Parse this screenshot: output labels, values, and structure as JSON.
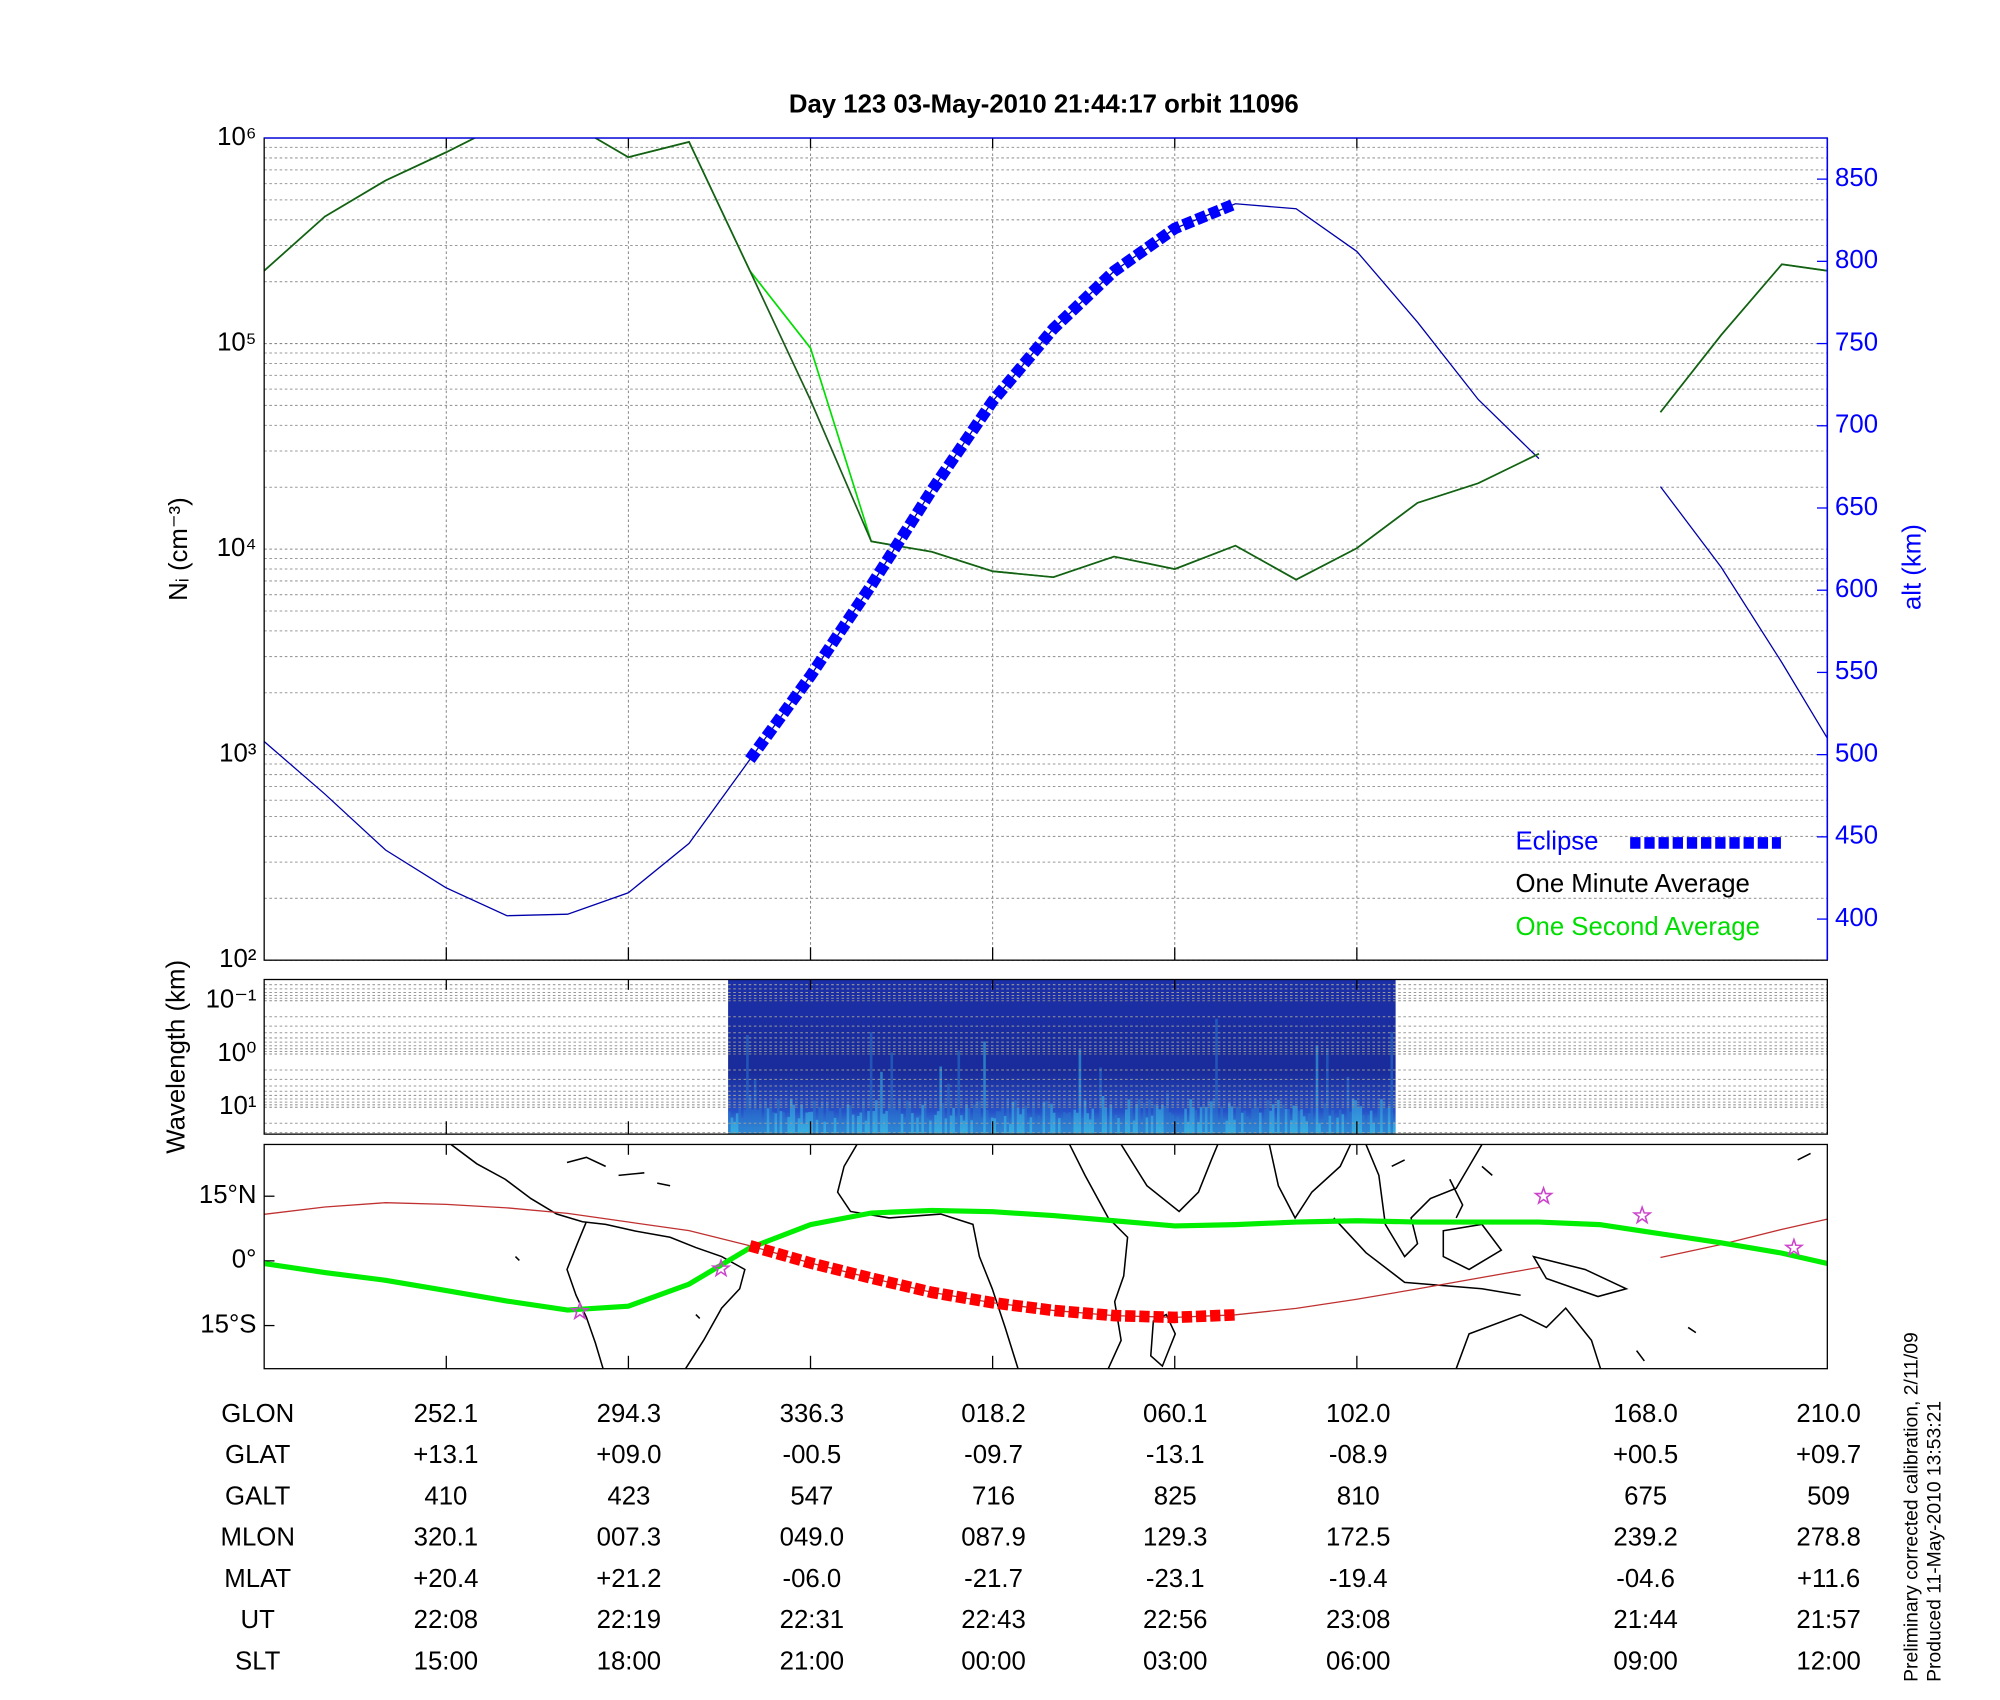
{
  "chart_data": [
    {
      "type": "line",
      "title": "Day 123  03-May-2010 21:44:17   orbit 11096",
      "ylabel": "Nᵢ (cm⁻³)",
      "y2label": "alt (km)",
      "y2color": "#0000ff",
      "log_y": true,
      "grid": true,
      "legend": "lower right",
      "xlim": [
        0,
        103
      ],
      "xticks": [
        12,
        24,
        36,
        48,
        60,
        72
      ],
      "ylim": [
        100,
        1000000
      ],
      "yticks": [
        {
          "value": 100,
          "label": "10²"
        },
        {
          "value": 1000,
          "label": "10³"
        },
        {
          "value": 10000,
          "label": "10⁴"
        },
        {
          "value": 100000,
          "label": "10⁵"
        },
        {
          "value": 1000000,
          "label": "10⁶"
        }
      ],
      "y2lim": [
        375,
        875
      ],
      "y2ticks": [
        400,
        450,
        500,
        550,
        600,
        650,
        700,
        750,
        800,
        850
      ],
      "x": [
        0,
        4,
        8,
        12,
        16,
        20,
        24,
        28,
        32,
        36,
        40,
        44,
        48,
        52,
        56,
        60,
        64,
        68,
        72,
        76,
        80,
        84,
        88,
        92,
        96,
        100,
        103
      ],
      "series": [
        {
          "name": "Eclipse",
          "color": "#0000ff",
          "label_color": "#0000ff",
          "axis": "y2",
          "width": 9,
          "dash": "8 3",
          "values": [
            null,
            null,
            null,
            null,
            null,
            null,
            null,
            null,
            497,
            548,
            603,
            661,
            715,
            759,
            794,
            820,
            835,
            null,
            null,
            null,
            null,
            null,
            null,
            null,
            null,
            null,
            null
          ]
        },
        {
          "name": "One Minute Average",
          "color": "#1a5c1a",
          "label_color": "#000000",
          "width": 1.3,
          "values": [
            226000,
            415000,
            621000,
            853000,
            1200000,
            1200000,
            806000,
            958000,
            226000,
            53000,
            10900,
            9700,
            7800,
            7300,
            9200,
            8000,
            10400,
            7100,
            10100,
            16800,
            20900,
            29100,
            null,
            46300,
            110000,
            243000,
            226000
          ]
        },
        {
          "name": "One Second Average",
          "color": "#00dd00",
          "label_color": "#00dd00",
          "width": 1.3,
          "values": [
            226000,
            415000,
            621000,
            853000,
            1200000,
            1200000,
            806000,
            958000,
            226000,
            95000,
            10900,
            9700,
            7800,
            7300,
            9200,
            8000,
            10400,
            7100,
            10100,
            16800,
            20900,
            29100,
            null,
            46300,
            110000,
            243000,
            226000
          ]
        },
        {
          "color": "#0000aa",
          "axis": "y2",
          "width": 1,
          "values": [
            508,
            476,
            442,
            419,
            402,
            403,
            416,
            446,
            497,
            548,
            603,
            661,
            715,
            759,
            794,
            820,
            835,
            832,
            806,
            763,
            716,
            680,
            null,
            663,
            614,
            556,
            510
          ]
        }
      ]
    },
    {
      "type": "spectrogram",
      "ylabel": "Wavelength (km)",
      "log_y": true,
      "inverted": true,
      "grid": true,
      "xlim": [
        0,
        103
      ],
      "xticks": [
        12,
        24,
        36,
        48,
        60,
        72
      ],
      "ylim": [
        0.04,
        32
      ],
      "yticks": [
        {
          "value": 0.1,
          "label": "10⁻¹"
        },
        {
          "value": 1,
          "label": "10⁰"
        },
        {
          "value": 10,
          "label": "10¹"
        }
      ]
    },
    {
      "type": "line",
      "xlim": [
        0,
        103
      ],
      "xticks": [
        12,
        24,
        36,
        48,
        60,
        72
      ],
      "ylim": [
        -25,
        27
      ],
      "yticks": [
        {
          "value": 15,
          "label": "15°N"
        },
        {
          "value": 0,
          "label": "0°"
        },
        {
          "value": -15,
          "label": "15°S"
        }
      ],
      "x": [
        0,
        4,
        8,
        12,
        16,
        20,
        24,
        28,
        32,
        36,
        40,
        44,
        48,
        52,
        56,
        60,
        64,
        68,
        72,
        76,
        80,
        84,
        88,
        92,
        96,
        100,
        103
      ],
      "series": [
        {
          "color": "#ff0000",
          "width": 9,
          "dash": "8 3",
          "values": [
            null,
            null,
            null,
            null,
            null,
            null,
            null,
            null,
            3.5,
            -0.5,
            -4.0,
            -7.3,
            -9.7,
            -11.5,
            -12.7,
            -13.1,
            -12.5,
            null,
            null,
            null,
            null,
            null,
            null,
            null,
            null,
            null,
            null
          ]
        },
        {
          "color": "#00ee00",
          "width": 4,
          "values": [
            -0.6,
            -2.7,
            -4.5,
            -6.9,
            -9.3,
            -11.4,
            -10.5,
            -5.4,
            3.0,
            8.4,
            11.1,
            11.7,
            11.4,
            10.5,
            9.3,
            8.1,
            8.4,
            9.0,
            9.3,
            9.0,
            9.0,
            9.0,
            8.4,
            6.3,
            4.2,
            1.8,
            -0.6
          ]
        },
        {
          "color": "#c03030",
          "width": 1,
          "values": [
            10.8,
            12.5,
            13.5,
            13.1,
            12.3,
            11.0,
            9.0,
            7.0,
            3.5,
            -0.5,
            -4.0,
            -7.3,
            -9.7,
            -11.5,
            -12.7,
            -13.1,
            -12.5,
            -11.0,
            -8.9,
            -6.5,
            -4.0,
            -1.5,
            null,
            0.8,
            3.8,
            7.3,
            9.7
          ]
        }
      ],
      "markers": {
        "color": "#cc44cc",
        "x": [
          20.8,
          30.1,
          84.3,
          90.8,
          100.8
        ],
        "values": [
          -11.7,
          -1.8,
          15.0,
          10.5,
          3.0
        ]
      }
    }
  ],
  "table": {
    "rows": [
      [
        "GLON",
        "252.1",
        "294.3",
        "336.3",
        "018.2",
        "060.1",
        "102.0",
        "168.0",
        "210.0"
      ],
      [
        "GLAT",
        "+13.1",
        "+09.0",
        "-00.5",
        "-09.7",
        "-13.1",
        "-08.9",
        "+00.5",
        "+09.7"
      ],
      [
        "GALT",
        "410",
        "423",
        "547",
        "716",
        "825",
        "810",
        "675",
        "509"
      ],
      [
        "MLON",
        "320.1",
        "007.3",
        "049.0",
        "087.9",
        "129.3",
        "172.5",
        "239.2",
        "278.8"
      ],
      [
        "MLAT",
        "+20.4",
        "+21.2",
        "-06.0",
        "-21.7",
        "-23.1",
        "-19.4",
        "-04.6",
        "+11.6"
      ],
      [
        "UT",
        "22:08",
        "22:19",
        "22:31",
        "22:43",
        "22:56",
        "23:08",
        "21:44",
        "21:57"
      ],
      [
        "SLT",
        "15:00",
        "18:00",
        "21:00",
        "00:00",
        "03:00",
        "06:00",
        "09:00",
        "12:00"
      ]
    ]
  },
  "footnotes": [
    "Preliminary corrected calibration, 2/11/09",
    "Produced 11-May-2010 13:53:21"
  ]
}
